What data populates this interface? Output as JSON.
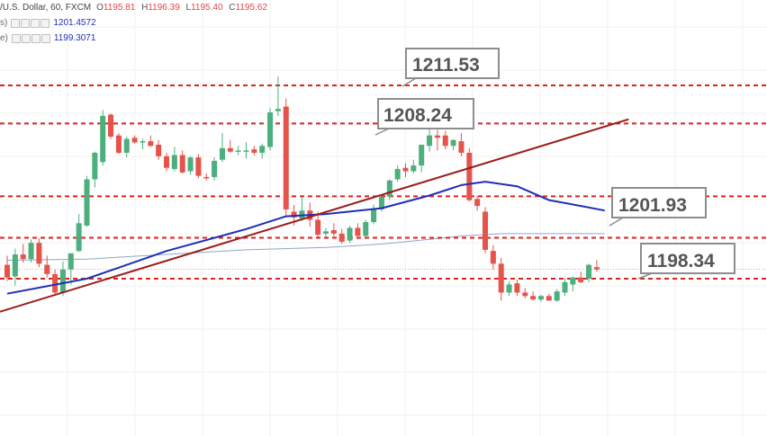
{
  "legend": {
    "symbol": "/U.S. Dollar, 60, FXCM",
    "open_key": "O",
    "open": "1195.81",
    "high_key": "H",
    "high": "1196.39",
    "low_key": "L",
    "low": "1195.40",
    "close_key": "C",
    "close": "1195.62",
    "ind1_name": "s)",
    "ind1_value": "1201.4572",
    "ind2_name": "e)",
    "ind2_value": "1199.3071"
  },
  "colors": {
    "up": "#4caf7d",
    "down": "#e5534b",
    "level_line": "#e0201c",
    "trendline": "#9b1b1b",
    "ma_fast": "#1f2fb5",
    "ma_slow": "#8fa6c8",
    "price_line": "#f3a0a0"
  },
  "level_labels": [
    {
      "id": "label-1211",
      "text": "1211.53"
    },
    {
      "id": "label-1208",
      "text": "1208.24"
    },
    {
      "id": "label-1201",
      "text": "1201.93"
    },
    {
      "id": "label-1198",
      "text": "1198.34"
    }
  ],
  "chart_data": {
    "type": "candlestick",
    "levels": [
      1211.53,
      1208.24,
      1201.93,
      1198.34,
      1194.8
    ],
    "candles": [
      [
        1196.0,
        1196.8,
        1194.6,
        1194.9
      ],
      [
        1195.0,
        1197.4,
        1194.2,
        1196.9
      ],
      [
        1196.9,
        1197.8,
        1196.2,
        1196.5
      ],
      [
        1196.5,
        1198.2,
        1196.2,
        1197.9
      ],
      [
        1197.9,
        1198.3,
        1195.8,
        1196.1
      ],
      [
        1196.0,
        1196.8,
        1194.9,
        1195.2
      ],
      [
        1195.2,
        1195.6,
        1193.3,
        1193.6
      ],
      [
        1193.6,
        1196.3,
        1193.3,
        1195.6
      ],
      [
        1195.6,
        1197.0,
        1194.3,
        1197.0
      ],
      [
        1197.2,
        1200.4,
        1197.1,
        1199.6
      ],
      [
        1199.4,
        1203.7,
        1199.3,
        1203.4
      ],
      [
        1203.4,
        1205.8,
        1202.7,
        1205.7
      ],
      [
        1204.9,
        1209.4,
        1204.6,
        1208.9
      ],
      [
        1209.0,
        1209.1,
        1206.9,
        1207.1
      ],
      [
        1207.2,
        1207.4,
        1205.6,
        1205.7
      ],
      [
        1205.7,
        1207.1,
        1205.3,
        1206.9
      ],
      [
        1207.0,
        1207.2,
        1206.5,
        1206.6
      ],
      [
        1206.6,
        1206.9,
        1206.0,
        1206.7
      ],
      [
        1206.7,
        1207.2,
        1206.2,
        1206.3
      ],
      [
        1206.4,
        1206.8,
        1205.1,
        1205.4
      ],
      [
        1205.4,
        1205.7,
        1204.1,
        1204.4
      ],
      [
        1204.3,
        1206.2,
        1204.1,
        1205.5
      ],
      [
        1205.5,
        1205.9,
        1203.9,
        1204.0
      ],
      [
        1204.1,
        1205.4,
        1203.8,
        1205.3
      ],
      [
        1205.3,
        1205.6,
        1203.5,
        1203.7
      ],
      [
        1203.6,
        1203.9,
        1203.3,
        1203.5
      ],
      [
        1203.6,
        1205.3,
        1203.3,
        1205.0
      ],
      [
        1205.1,
        1207.4,
        1204.9,
        1206.1
      ],
      [
        1206.1,
        1206.8,
        1205.7,
        1205.8
      ],
      [
        1205.8,
        1206.3,
        1205.5,
        1205.9
      ],
      [
        1205.9,
        1206.6,
        1205.2,
        1205.9
      ],
      [
        1206.0,
        1206.3,
        1205.5,
        1205.7
      ],
      [
        1205.7,
        1206.5,
        1205.2,
        1206.3
      ],
      [
        1206.2,
        1209.6,
        1205.9,
        1209.2
      ],
      [
        1209.3,
        1212.3,
        1208.9,
        1209.5
      ],
      [
        1209.7,
        1210.4,
        1200.1,
        1200.8
      ],
      [
        1200.6,
        1201.2,
        1199.4,
        1200.1
      ],
      [
        1200.0,
        1201.9,
        1199.8,
        1200.7
      ],
      [
        1200.7,
        1201.4,
        1199.3,
        1199.9
      ],
      [
        1199.9,
        1200.6,
        1198.4,
        1198.6
      ],
      [
        1198.7,
        1199.2,
        1198.4,
        1198.9
      ],
      [
        1199.0,
        1199.6,
        1198.3,
        1198.7
      ],
      [
        1198.7,
        1199.1,
        1197.8,
        1198.0
      ],
      [
        1198.1,
        1199.4,
        1197.9,
        1199.2
      ],
      [
        1199.2,
        1199.6,
        1198.2,
        1198.5
      ],
      [
        1198.5,
        1199.9,
        1198.4,
        1199.7
      ],
      [
        1199.7,
        1201.2,
        1199.5,
        1200.8
      ],
      [
        1200.8,
        1202.1,
        1200.6,
        1201.9
      ],
      [
        1201.9,
        1203.4,
        1201.6,
        1203.3
      ],
      [
        1203.4,
        1204.6,
        1203.2,
        1204.3
      ],
      [
        1204.4,
        1204.8,
        1203.6,
        1204.1
      ],
      [
        1204.1,
        1205.1,
        1203.9,
        1204.6
      ],
      [
        1204.6,
        1206.4,
        1204.0,
        1206.4
      ],
      [
        1206.3,
        1208.0,
        1205.8,
        1207.2
      ],
      [
        1207.2,
        1207.7,
        1205.9,
        1207.0
      ],
      [
        1207.2,
        1207.6,
        1206.0,
        1206.3
      ],
      [
        1206.3,
        1206.9,
        1205.9,
        1206.8
      ],
      [
        1206.7,
        1207.4,
        1205.4,
        1205.7
      ],
      [
        1205.7,
        1206.1,
        1201.5,
        1201.6
      ],
      [
        1201.7,
        1202.0,
        1200.7,
        1201.1
      ],
      [
        1200.6,
        1201.0,
        1197.0,
        1197.3
      ],
      [
        1197.2,
        1197.7,
        1195.6,
        1196.1
      ],
      [
        1196.1,
        1196.6,
        1192.9,
        1193.6
      ],
      [
        1193.6,
        1194.6,
        1193.3,
        1194.3
      ],
      [
        1194.4,
        1194.7,
        1193.3,
        1193.6
      ],
      [
        1193.6,
        1194.0,
        1193.1,
        1193.3
      ],
      [
        1193.3,
        1193.7,
        1192.9,
        1193.0
      ],
      [
        1193.0,
        1193.4,
        1192.8,
        1193.3
      ],
      [
        1193.3,
        1193.5,
        1192.9,
        1192.9
      ],
      [
        1192.9,
        1193.9,
        1192.8,
        1193.7
      ],
      [
        1193.6,
        1194.9,
        1193.3,
        1194.5
      ],
      [
        1194.3,
        1195.0,
        1193.7,
        1194.9
      ],
      [
        1194.9,
        1195.4,
        1194.4,
        1194.5
      ],
      [
        1194.8,
        1196.1,
        1194.5,
        1196.0
      ],
      [
        1195.8,
        1196.4,
        1195.4,
        1195.6
      ]
    ],
    "ma_fast": [
      [
        0,
        1193.5
      ],
      [
        10,
        1194.8
      ],
      [
        20,
        1197.2
      ],
      [
        30,
        1199.1
      ],
      [
        35,
        1200.2
      ],
      [
        40,
        1200.4
      ],
      [
        47,
        1200.9
      ],
      [
        53,
        1202.0
      ],
      [
        57,
        1202.9
      ],
      [
        60,
        1203.2
      ],
      [
        64,
        1202.8
      ],
      [
        68,
        1201.6
      ],
      [
        72,
        1201.1
      ],
      [
        75,
        1200.7
      ]
    ],
    "ma_slow": [
      [
        0,
        1196.4
      ],
      [
        10,
        1196.5
      ],
      [
        20,
        1196.9
      ],
      [
        30,
        1197.3
      ],
      [
        40,
        1197.5
      ],
      [
        47,
        1197.8
      ],
      [
        53,
        1198.2
      ],
      [
        57,
        1198.5
      ],
      [
        62,
        1198.7
      ],
      [
        75,
        1198.7
      ]
    ],
    "trendline": [
      [
        -3,
        1191.5
      ],
      [
        78,
        1208.6
      ]
    ],
    "last_price": 1195.62
  }
}
